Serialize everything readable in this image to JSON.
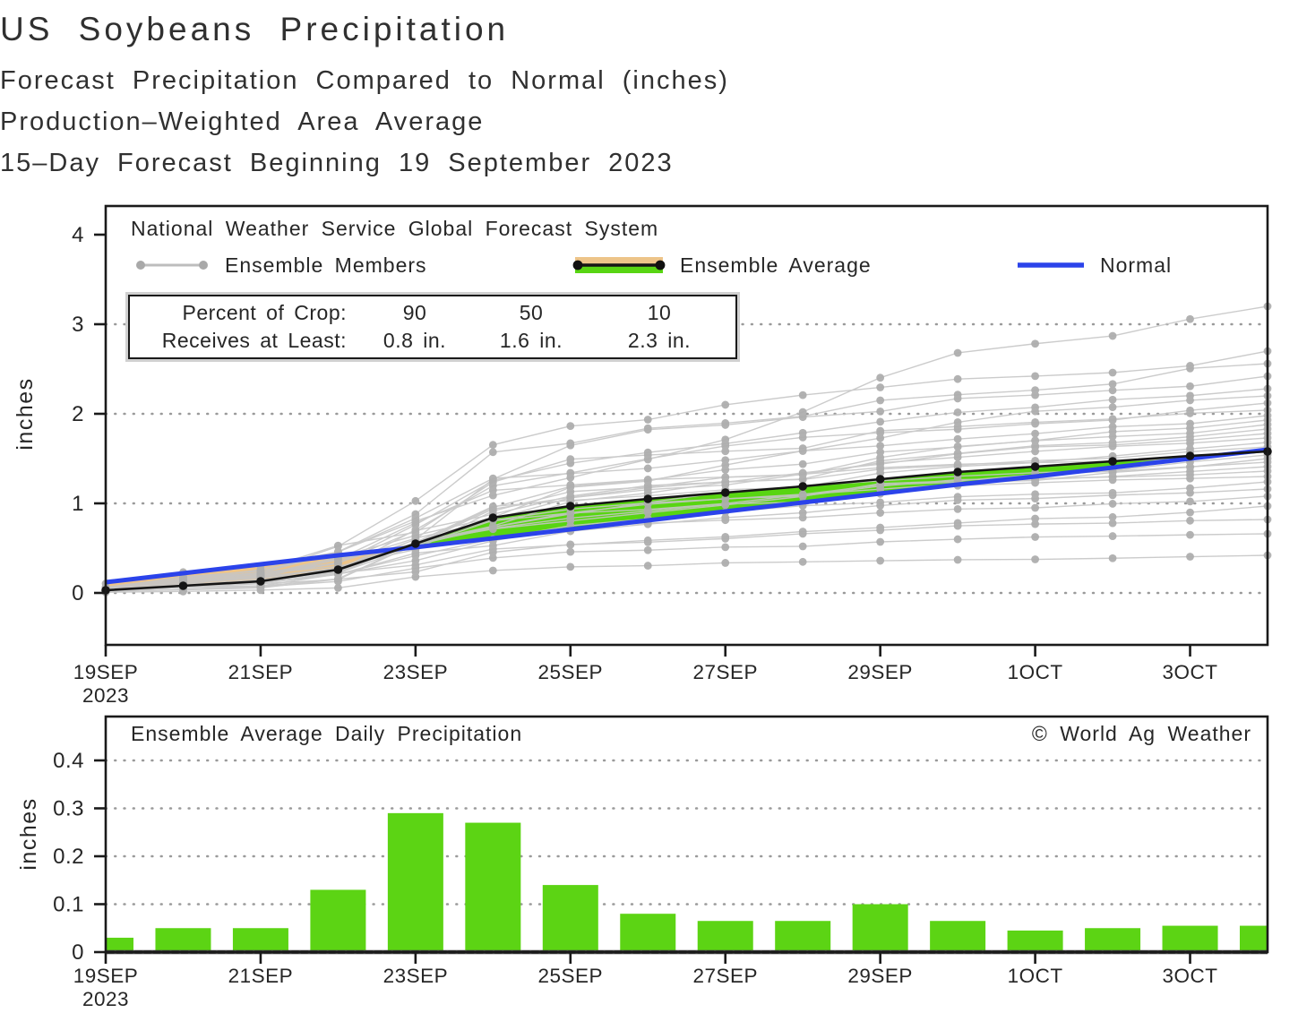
{
  "title": "US Soybeans Precipitation",
  "subtitle1": "Forecast Precipitation Compared to Normal (inches)",
  "subtitle2": "Production–Weighted Area Average",
  "subtitle3": "15–Day Forecast Beginning 19 September 2023",
  "colors": {
    "surplus_green": "#58d512",
    "deficit_tan": "#edc489",
    "normal_blue": "#2b43ea",
    "member_line_gray": "#c6c6c6",
    "member_dot_gray": "#aeaeae",
    "average_black": "#151515",
    "bar_green": "#5cd414",
    "grid_gray": "#9a9a9a",
    "axis_black": "#1a1a1a",
    "zero_line_gray": "#3b3b3b"
  },
  "x_axis": {
    "domain": [
      0,
      15
    ],
    "ticks": [
      {
        "day": 0,
        "label": "19SEP",
        "sublabel": "2023"
      },
      {
        "day": 2,
        "label": "21SEP"
      },
      {
        "day": 4,
        "label": "23SEP"
      },
      {
        "day": 6,
        "label": "25SEP"
      },
      {
        "day": 8,
        "label": "27SEP"
      },
      {
        "day": 10,
        "label": "29SEP"
      },
      {
        "day": 12,
        "label": "1OCT"
      },
      {
        "day": 14,
        "label": "3OCT"
      }
    ]
  },
  "chart_data": [
    {
      "id": "cumulative-precipitation",
      "type": "line",
      "source_label": "National Weather Service Global Forecast System",
      "ylabel": "inches",
      "ylim": [
        -0.56,
        4.32
      ],
      "yticks": [
        0,
        1,
        2,
        3,
        4
      ],
      "grid_y": [
        0,
        1,
        2,
        3
      ],
      "legend": [
        {
          "name": "Ensemble Members"
        },
        {
          "name": "Ensemble Average"
        },
        {
          "name": "Normal"
        }
      ],
      "stats_box": {
        "row1_label": "Percent of Crop:",
        "row2_label": "Receives at Least:",
        "columns": [
          {
            "percent": "90",
            "amount": "0.8 in."
          },
          {
            "percent": "50",
            "amount": "1.6 in."
          },
          {
            "percent": "10",
            "amount": "2.3 in."
          }
        ]
      },
      "series": [
        {
          "name": "Ensemble Average",
          "values": [
            0.03,
            0.08,
            0.13,
            0.26,
            0.55,
            0.84,
            0.97,
            1.05,
            1.12,
            1.19,
            1.27,
            1.35,
            1.41,
            1.47,
            1.53,
            1.58
          ]
        },
        {
          "name": "Normal",
          "values": [
            0.12,
            0.22,
            0.32,
            0.42,
            0.51,
            0.61,
            0.71,
            0.81,
            0.91,
            1.01,
            1.11,
            1.21,
            1.3,
            1.4,
            1.5,
            1.6
          ]
        }
      ],
      "ensemble_members": {
        "count": 30,
        "seed": 13,
        "final_values": [
          3.2,
          2.7,
          2.56,
          2.42,
          2.28,
          2.2,
          2.12,
          2.04,
          1.98,
          1.93,
          1.88,
          1.83,
          1.78,
          1.73,
          1.68,
          1.63,
          1.58,
          1.54,
          1.5,
          1.46,
          1.41,
          1.36,
          1.3,
          1.24,
          1.16,
          1.08,
          0.97,
          0.82,
          0.66,
          0.42
        ]
      }
    },
    {
      "id": "daily-precipitation",
      "type": "bar",
      "panel_title": "Ensemble Average Daily Precipitation",
      "copyright": "© World Ag Weather",
      "ylabel": "inches",
      "ylim": [
        0,
        0.49
      ],
      "yticks": [
        0,
        0.1,
        0.2,
        0.3,
        0.4
      ],
      "grid_y": [
        0.1,
        0.2,
        0.3,
        0.4
      ],
      "values": [
        0.03,
        0.05,
        0.05,
        0.13,
        0.29,
        0.27,
        0.14,
        0.08,
        0.065,
        0.065,
        0.1,
        0.065,
        0.045,
        0.05,
        0.055,
        0.055
      ]
    }
  ]
}
